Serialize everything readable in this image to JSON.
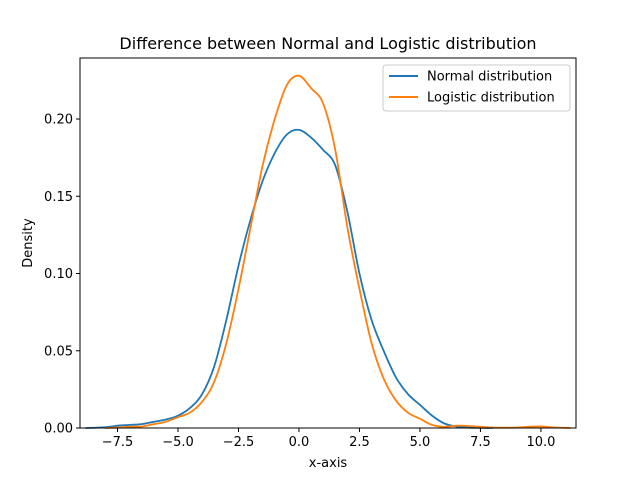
{
  "chart_data": {
    "type": "line",
    "title": "Difference between Normal and Logistic distribution",
    "xlabel": "x-axis",
    "ylabel": "Density",
    "xlim": [
      -9.05,
      11.45
    ],
    "ylim": [
      0.0,
      0.2395
    ],
    "xticks": [
      -7.5,
      -5.0,
      -2.5,
      0.0,
      2.5,
      5.0,
      7.5,
      10.0
    ],
    "xtick_labels": [
      "−7.5",
      "−5.0",
      "−2.5",
      "0.0",
      "2.5",
      "5.0",
      "7.5",
      "10.0"
    ],
    "yticks": [
      0.0,
      0.05,
      0.1,
      0.15,
      0.2
    ],
    "ytick_labels": [
      "0.00",
      "0.05",
      "0.10",
      "0.15",
      "0.20"
    ],
    "grid": false,
    "legend_position": "top-right",
    "series": [
      {
        "name": "Normal distribution",
        "color": "#1f77b4",
        "x": [
          -8.8,
          -8.0,
          -7.5,
          -7.0,
          -6.5,
          -6.0,
          -5.5,
          -5.0,
          -4.5,
          -4.0,
          -3.5,
          -3.0,
          -2.5,
          -2.0,
          -1.5,
          -1.0,
          -0.5,
          0.0,
          0.5,
          1.0,
          1.5,
          2.0,
          2.5,
          3.0,
          3.5,
          4.0,
          4.5,
          5.0,
          5.5,
          6.0,
          6.5,
          7.0,
          7.5,
          8.0
        ],
        "y": [
          0.0,
          0.0005,
          0.0015,
          0.002,
          0.0025,
          0.004,
          0.0055,
          0.008,
          0.013,
          0.022,
          0.04,
          0.07,
          0.105,
          0.135,
          0.16,
          0.178,
          0.19,
          0.193,
          0.188,
          0.18,
          0.17,
          0.14,
          0.1,
          0.07,
          0.05,
          0.033,
          0.022,
          0.015,
          0.008,
          0.003,
          0.001,
          0.0003,
          0.0001,
          0.0
        ]
      },
      {
        "name": "Logistic distribution",
        "color": "#ff7f0e",
        "x": [
          -8.0,
          -7.5,
          -7.0,
          -6.5,
          -6.0,
          -5.5,
          -5.0,
          -4.5,
          -4.0,
          -3.5,
          -3.0,
          -2.5,
          -2.0,
          -1.5,
          -1.0,
          -0.5,
          0.0,
          0.5,
          1.0,
          1.5,
          2.0,
          2.5,
          3.0,
          3.5,
          4.0,
          4.5,
          5.0,
          5.5,
          6.0,
          6.5,
          7.0,
          7.5,
          8.0,
          8.5,
          9.0,
          9.5,
          10.0,
          10.5,
          11.2
        ],
        "y": [
          0.0,
          0.0003,
          0.0008,
          0.001,
          0.0025,
          0.004,
          0.007,
          0.01,
          0.017,
          0.03,
          0.055,
          0.09,
          0.13,
          0.17,
          0.2,
          0.222,
          0.228,
          0.22,
          0.21,
          0.18,
          0.13,
          0.09,
          0.055,
          0.032,
          0.018,
          0.01,
          0.006,
          0.002,
          0.0008,
          0.0015,
          0.0013,
          0.0008,
          0.0003,
          0.0002,
          0.0003,
          0.0008,
          0.001,
          0.0004,
          0.0
        ]
      }
    ]
  }
}
